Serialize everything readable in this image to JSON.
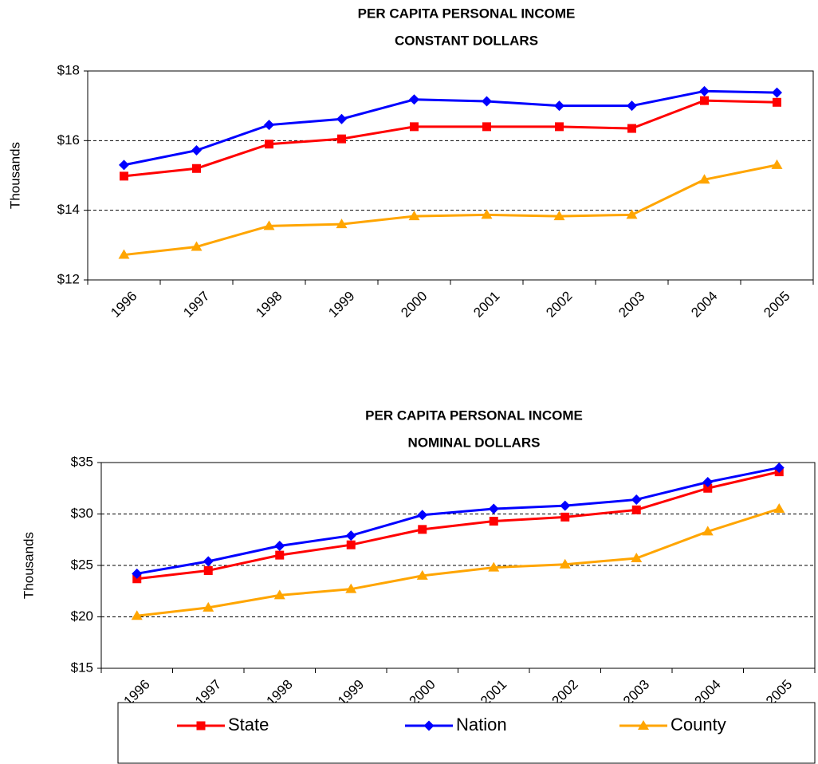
{
  "chart_data": [
    {
      "type": "line",
      "title": "PER CAPITA PERSONAL INCOME",
      "subtitle": "CONSTANT DOLLARS",
      "y_label": "Thousands",
      "categories": [
        "1996",
        "1997",
        "1998",
        "1999",
        "2000",
        "2001",
        "2002",
        "2003",
        "2004",
        "2005"
      ],
      "ylim": [
        12,
        18
      ],
      "yticks": [
        {
          "value": 12,
          "label": "$12"
        },
        {
          "value": 14,
          "label": "$14"
        },
        {
          "value": 16,
          "label": "$16"
        },
        {
          "value": 18,
          "label": "$18"
        }
      ],
      "grid": true,
      "series": [
        {
          "color": "#ff0000",
          "marker": "square",
          "values": [
            14.98,
            15.2,
            15.9,
            16.05,
            16.4,
            16.4,
            16.4,
            16.35,
            17.15,
            17.1
          ]
        },
        {
          "color": "#0000ff",
          "marker": "diamond",
          "values": [
            15.3,
            15.72,
            16.45,
            16.62,
            17.18,
            17.13,
            17.0,
            17.0,
            17.42,
            17.38
          ]
        },
        {
          "color": "#ffa500",
          "marker": "triangle",
          "values": [
            12.72,
            12.95,
            13.55,
            13.6,
            13.83,
            13.87,
            13.83,
            13.87,
            14.88,
            15.3
          ]
        }
      ]
    },
    {
      "type": "line",
      "title": "PER CAPITA PERSONAL INCOME",
      "subtitle": "NOMINAL DOLLARS",
      "y_label": "Thousands",
      "categories": [
        "1996",
        "1997",
        "1998",
        "1999",
        "2000",
        "2001",
        "2002",
        "2003",
        "2004",
        "2005"
      ],
      "ylim": [
        15,
        35
      ],
      "yticks": [
        {
          "value": 15,
          "label": "$15"
        },
        {
          "value": 20,
          "label": "$20"
        },
        {
          "value": 25,
          "label": "$25"
        },
        {
          "value": 30,
          "label": "$30"
        },
        {
          "value": 35,
          "label": "$35"
        }
      ],
      "grid": true,
      "legend": "bottom",
      "series": [
        {
          "name": "State",
          "color": "#ff0000",
          "marker": "square",
          "values": [
            23.7,
            24.5,
            26.0,
            27.0,
            28.5,
            29.3,
            29.7,
            30.4,
            32.5,
            34.1
          ]
        },
        {
          "name": "Nation",
          "color": "#0000ff",
          "marker": "diamond",
          "values": [
            24.2,
            25.4,
            26.9,
            27.9,
            29.9,
            30.5,
            30.8,
            31.4,
            33.1,
            34.5
          ]
        },
        {
          "name": "County",
          "color": "#ffa500",
          "marker": "triangle",
          "values": [
            20.1,
            20.9,
            22.1,
            22.7,
            24.0,
            24.8,
            25.1,
            25.7,
            28.3,
            30.5
          ]
        }
      ]
    }
  ]
}
